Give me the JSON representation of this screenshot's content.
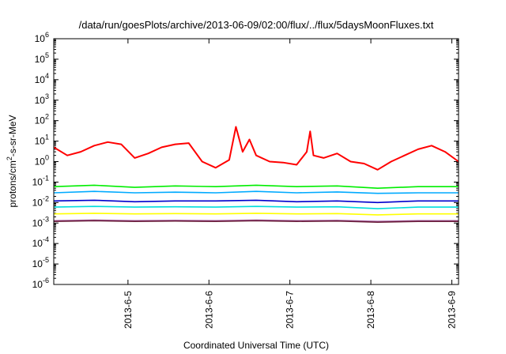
{
  "chart_data": {
    "type": "line",
    "title": "/data/run/goesPlots/archive/2013-06-09/02:00/flux/../flux/5daysMoonFluxes.txt",
    "xlabel": "Coordinated Universal Time (UTC)",
    "ylabel": "protons/cm2-s-sr-MeV",
    "y_scale": "log",
    "ylim": [
      1e-06,
      1000000.0
    ],
    "y_ticks": [
      {
        "value": 1e-06,
        "base": "10",
        "exp": "-6"
      },
      {
        "value": 1e-05,
        "base": "10",
        "exp": "-5"
      },
      {
        "value": 0.0001,
        "base": "10",
        "exp": "-4"
      },
      {
        "value": 0.001,
        "base": "10",
        "exp": "-3"
      },
      {
        "value": 0.01,
        "base": "10",
        "exp": "-2"
      },
      {
        "value": 0.1,
        "base": "10",
        "exp": "-1"
      },
      {
        "value": 1,
        "base": "10",
        "exp": "0"
      },
      {
        "value": 10,
        "base": "10",
        "exp": "1"
      },
      {
        "value": 100,
        "base": "10",
        "exp": "2"
      },
      {
        "value": 1000,
        "base": "10",
        "exp": "3"
      },
      {
        "value": 10000,
        "base": "10",
        "exp": "4"
      },
      {
        "value": 100000,
        "base": "10",
        "exp": "5"
      },
      {
        "value": 1000000,
        "base": "10",
        "exp": "6"
      }
    ],
    "xlim": [
      "2013-06-04 02:00",
      "2013-06-09 02:00"
    ],
    "x_ticks": [
      "2013-6-5",
      "2013-6-6",
      "2013-6-7",
      "2013-6-8",
      "2013-6-9"
    ],
    "grid": false,
    "series": [
      {
        "color": "#ff0000",
        "x": [
          "2013-06-04 02:00",
          "2013-06-04 06:00",
          "2013-06-04 10:00",
          "2013-06-04 14:00",
          "2013-06-04 18:00",
          "2013-06-04 22:00",
          "2013-06-05 02:00",
          "2013-06-05 06:00",
          "2013-06-05 10:00",
          "2013-06-05 14:00",
          "2013-06-05 18:00",
          "2013-06-05 22:00",
          "2013-06-06 02:00",
          "2013-06-06 06:00",
          "2013-06-06 08:00",
          "2013-06-06 10:00",
          "2013-06-06 12:00",
          "2013-06-06 14:00",
          "2013-06-06 18:00",
          "2013-06-06 22:00",
          "2013-06-07 02:00",
          "2013-06-07 05:00",
          "2013-06-07 06:00",
          "2013-06-07 07:00",
          "2013-06-07 10:00",
          "2013-06-07 14:00",
          "2013-06-07 18:00",
          "2013-06-07 22:00",
          "2013-06-08 02:00",
          "2013-06-08 06:00",
          "2013-06-08 10:00",
          "2013-06-08 14:00",
          "2013-06-08 18:00",
          "2013-06-08 22:00",
          "2013-06-09 02:00"
        ],
        "values": [
          5,
          2,
          3,
          6,
          9,
          7,
          1.5,
          2.5,
          5,
          7,
          8,
          1,
          0.5,
          1.2,
          50,
          3,
          12,
          2,
          1,
          0.9,
          0.7,
          3,
          30,
          2,
          1.5,
          2.5,
          1,
          0.8,
          0.4,
          1,
          2,
          4,
          6,
          3,
          1
        ]
      },
      {
        "color": "#00ee00",
        "x": [
          "2013-06-04 02:00",
          "2013-06-04 14:00",
          "2013-06-05 02:00",
          "2013-06-05 14:00",
          "2013-06-06 02:00",
          "2013-06-06 14:00",
          "2013-06-07 02:00",
          "2013-06-07 14:00",
          "2013-06-08 02:00",
          "2013-06-08 14:00",
          "2013-06-09 02:00"
        ],
        "values": [
          0.06,
          0.07,
          0.055,
          0.065,
          0.06,
          0.07,
          0.06,
          0.065,
          0.05,
          0.06,
          0.06
        ]
      },
      {
        "color": "#00aaff",
        "x": [
          "2013-06-04 02:00",
          "2013-06-04 14:00",
          "2013-06-05 02:00",
          "2013-06-05 14:00",
          "2013-06-06 02:00",
          "2013-06-06 14:00",
          "2013-06-07 02:00",
          "2013-06-07 14:00",
          "2013-06-08 02:00",
          "2013-06-08 14:00",
          "2013-06-09 02:00"
        ],
        "values": [
          0.03,
          0.035,
          0.03,
          0.032,
          0.03,
          0.035,
          0.03,
          0.033,
          0.028,
          0.03,
          0.03
        ]
      },
      {
        "color": "#0000cc",
        "x": [
          "2013-06-04 02:00",
          "2013-06-04 14:00",
          "2013-06-05 02:00",
          "2013-06-05 14:00",
          "2013-06-06 02:00",
          "2013-06-06 14:00",
          "2013-06-07 02:00",
          "2013-06-07 14:00",
          "2013-06-08 02:00",
          "2013-06-08 14:00",
          "2013-06-09 02:00"
        ],
        "values": [
          0.012,
          0.013,
          0.011,
          0.012,
          0.012,
          0.013,
          0.011,
          0.012,
          0.01,
          0.012,
          0.012
        ]
      },
      {
        "color": "#00dddd",
        "x": [
          "2013-06-04 02:00",
          "2013-06-04 14:00",
          "2013-06-05 02:00",
          "2013-06-05 14:00",
          "2013-06-06 02:00",
          "2013-06-06 14:00",
          "2013-06-07 02:00",
          "2013-06-07 14:00",
          "2013-06-08 02:00",
          "2013-06-08 14:00",
          "2013-06-09 02:00"
        ],
        "values": [
          0.006,
          0.0065,
          0.006,
          0.0062,
          0.006,
          0.0065,
          0.006,
          0.0062,
          0.005,
          0.006,
          0.006
        ]
      },
      {
        "color": "#ffff00",
        "x": [
          "2013-06-04 02:00",
          "2013-06-04 14:00",
          "2013-06-05 02:00",
          "2013-06-05 14:00",
          "2013-06-06 02:00",
          "2013-06-06 14:00",
          "2013-06-07 02:00",
          "2013-06-07 14:00",
          "2013-06-08 02:00",
          "2013-06-08 14:00",
          "2013-06-09 02:00"
        ],
        "values": [
          0.0028,
          0.003,
          0.0028,
          0.0029,
          0.0028,
          0.003,
          0.0028,
          0.0029,
          0.0025,
          0.0028,
          0.0028
        ]
      },
      {
        "color": "#aa66aa",
        "x": [
          "2013-06-04 02:00",
          "2013-06-04 14:00",
          "2013-06-05 02:00",
          "2013-06-05 14:00",
          "2013-06-06 02:00",
          "2013-06-06 14:00",
          "2013-06-07 02:00",
          "2013-06-07 14:00",
          "2013-06-08 02:00",
          "2013-06-08 14:00",
          "2013-06-09 02:00"
        ],
        "values": [
          0.0013,
          0.0014,
          0.0013,
          0.00135,
          0.0013,
          0.0014,
          0.0013,
          0.00135,
          0.0012,
          0.0013,
          0.0013
        ]
      },
      {
        "color": "#6b1e3a",
        "x": [
          "2013-06-04 02:00",
          "2013-06-04 14:00",
          "2013-06-05 02:00",
          "2013-06-05 14:00",
          "2013-06-06 02:00",
          "2013-06-06 14:00",
          "2013-06-07 02:00",
          "2013-06-07 14:00",
          "2013-06-08 02:00",
          "2013-06-08 14:00",
          "2013-06-09 02:00"
        ],
        "values": [
          0.0012,
          0.0013,
          0.0012,
          0.00125,
          0.0012,
          0.0013,
          0.0012,
          0.00125,
          0.0011,
          0.0012,
          0.0012
        ]
      }
    ]
  }
}
